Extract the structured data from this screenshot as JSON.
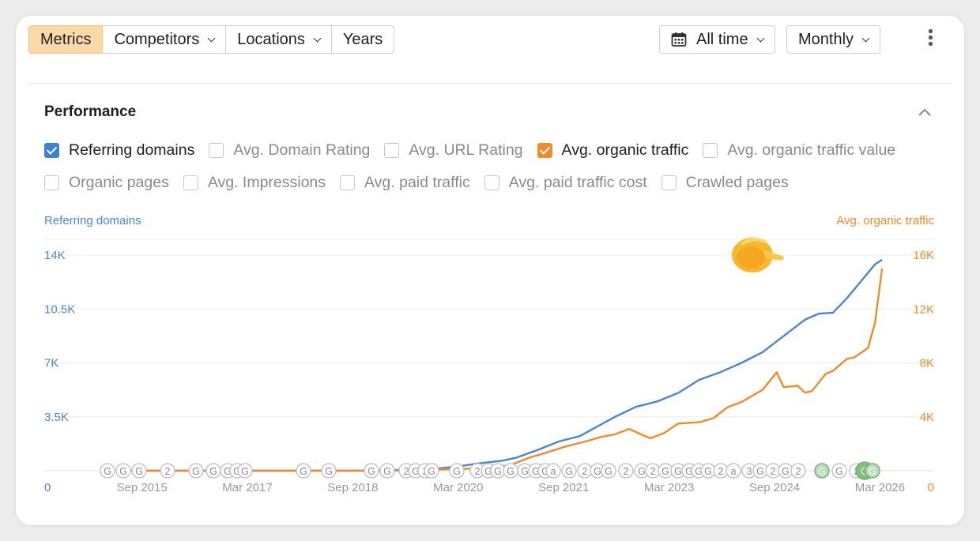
{
  "toolbar": {
    "tabs": [
      {
        "label": "Metrics",
        "active": true
      },
      {
        "label": "Competitors",
        "dropdown": true
      },
      {
        "label": "Locations",
        "dropdown": true
      },
      {
        "label": "Years",
        "dropdown": false
      }
    ],
    "time_range": "All time",
    "interval": "Monthly"
  },
  "performance": {
    "title": "Performance",
    "metrics_row1": [
      {
        "label": "Referring domains",
        "checked": true,
        "color": "#3f7fd4"
      },
      {
        "label": "Avg. Domain Rating",
        "checked": false
      },
      {
        "label": "Avg. URL Rating",
        "checked": false
      },
      {
        "label": "Avg. organic traffic",
        "checked": true,
        "color": "#ef8b2c"
      },
      {
        "label": "Avg. organic traffic value",
        "checked": false
      }
    ],
    "metrics_row2": [
      {
        "label": "Organic pages",
        "checked": false
      },
      {
        "label": "Avg. Impressions",
        "checked": false
      },
      {
        "label": "Avg. paid traffic",
        "checked": false
      },
      {
        "label": "Avg. paid traffic cost",
        "checked": false
      },
      {
        "label": "Crawled pages",
        "checked": false
      }
    ]
  },
  "chart_data": {
    "type": "line",
    "left_axis_title": "Referring domains",
    "right_axis_title": "Avg. organic traffic",
    "left_ticks": [
      "0",
      "3.5K",
      "7K",
      "10.5K",
      "14K"
    ],
    "right_ticks": [
      "0",
      "4K",
      "8K",
      "12K",
      "16K"
    ],
    "left_ylim": [
      0,
      14000
    ],
    "right_ylim": [
      0,
      16000
    ],
    "xlim": [
      2015.0,
      2026.3
    ],
    "x_ticks": [
      {
        "label": "Sep 2015",
        "x": 2015.67
      },
      {
        "label": "Mar 2017",
        "x": 2017.17
      },
      {
        "label": "Sep 2018",
        "x": 2018.67
      },
      {
        "label": "Mar 2020",
        "x": 2020.17
      },
      {
        "label": "Sep 2021",
        "x": 2021.67
      },
      {
        "label": "Mar 2023",
        "x": 2023.17
      },
      {
        "label": "Sep 2024",
        "x": 2024.67
      },
      {
        "label": "Mar 2026",
        "x": 2026.17
      }
    ],
    "series": [
      {
        "name": "Referring domains",
        "axis": "left",
        "color": "#4a86cf",
        "x": [
          2015.5,
          2016.0,
          2017.0,
          2018.0,
          2019.0,
          2019.5,
          2019.9,
          2020.2,
          2020.5,
          2020.8,
          2021.0,
          2021.3,
          2021.6,
          2021.9,
          2022.1,
          2022.4,
          2022.7,
          2023.0,
          2023.3,
          2023.6,
          2023.9,
          2024.2,
          2024.5,
          2024.8,
          2025.1,
          2025.3,
          2025.5,
          2025.7,
          2025.9,
          2026.1,
          2026.2
        ],
        "y": [
          0,
          0,
          0,
          0,
          0,
          80,
          150,
          300,
          500,
          650,
          850,
          1350,
          1900,
          2250,
          2750,
          3500,
          4150,
          4500,
          5050,
          5900,
          6400,
          7000,
          7700,
          8750,
          9800,
          10200,
          10250,
          11200,
          12300,
          13400,
          13700
        ]
      },
      {
        "name": "Avg. organic traffic",
        "axis": "right",
        "color": "#ef8b2c",
        "x": [
          2015.5,
          2016.0,
          2017.0,
          2018.0,
          2019.0,
          2019.5,
          2020.0,
          2020.5,
          2020.9,
          2021.2,
          2021.4,
          2021.7,
          2022.0,
          2022.2,
          2022.4,
          2022.6,
          2022.9,
          2023.1,
          2023.3,
          2023.6,
          2023.8,
          2024.0,
          2024.2,
          2024.5,
          2024.7,
          2024.8,
          2025.0,
          2025.1,
          2025.2,
          2025.4,
          2025.5,
          2025.7,
          2025.8,
          2026.0,
          2026.1,
          2026.2
        ],
        "y": [
          0,
          0,
          0,
          0,
          0,
          30,
          100,
          180,
          400,
          1000,
          1300,
          1800,
          2200,
          2500,
          2700,
          3100,
          2400,
          2800,
          3500,
          3600,
          3900,
          4700,
          5100,
          6000,
          7300,
          6200,
          6300,
          5800,
          5900,
          7200,
          7400,
          8300,
          8400,
          9100,
          11000,
          15000
        ]
      }
    ],
    "annotation_markers": [
      "G",
      "G",
      "G",
      "2",
      "G",
      "G",
      "G",
      "G",
      "G",
      "G",
      "G",
      "G",
      "G",
      "2",
      "G",
      "2",
      "G",
      "G",
      "2",
      "G",
      "G",
      "G",
      "G",
      "G",
      "G",
      "a",
      "G",
      "2",
      "G",
      "G",
      "2",
      "G",
      "2",
      "G",
      "G",
      "G",
      "G",
      "G",
      "2",
      "a",
      "3",
      "G",
      "2",
      "G",
      "2",
      "G",
      "G",
      "2",
      "G",
      "G"
    ]
  }
}
